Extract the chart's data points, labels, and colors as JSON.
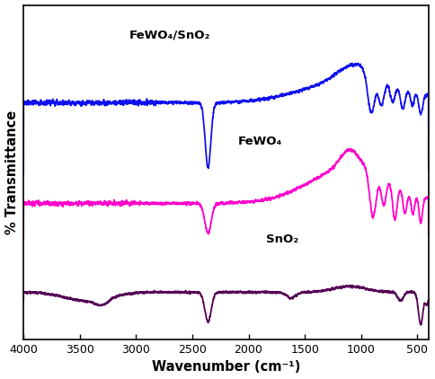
{
  "xlabel": "Wavenumber (cm⁻¹)",
  "ylabel": "% Transmittance",
  "labels": {
    "c": "FeWO₄/SnO₂",
    "a": "FeWO₄",
    "b": "SnO₂"
  },
  "colors": {
    "c": "#1010ee",
    "a": "#ff00cc",
    "b": "#550055"
  },
  "xticks": [
    500,
    1000,
    1500,
    2000,
    2500,
    3000,
    3500,
    4000
  ],
  "background_color": "#ffffff"
}
